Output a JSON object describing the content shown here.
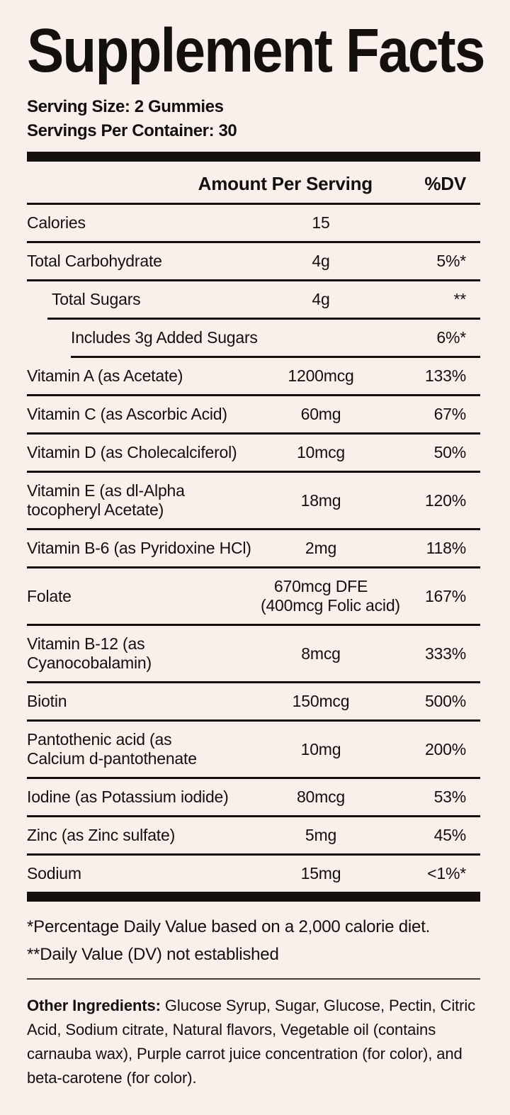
{
  "label": {
    "title": "Supplement Facts",
    "serving_size": "Serving Size: 2 Gummies",
    "servings_per_container": "Servings Per Container: 30",
    "header": {
      "amount": "Amount Per Serving",
      "dv": "%DV"
    },
    "rows": [
      {
        "name": "Calories",
        "amount": "15",
        "dv": "",
        "indent": 0
      },
      {
        "name": "Total Carbohydrate",
        "amount": "4g",
        "dv": "5%*",
        "indent": 0
      },
      {
        "name": "Total Sugars",
        "amount": "4g",
        "dv": "**",
        "indent": 1
      },
      {
        "name": "Includes 3g Added Sugars",
        "amount": "",
        "dv": "6%*",
        "indent": 2
      },
      {
        "name": "Vitamin A (as Acetate)",
        "amount": "1200mcg",
        "dv": "133%",
        "indent": 0
      },
      {
        "name": "Vitamin C (as Ascorbic Acid)",
        "amount": "60mg",
        "dv": "67%",
        "indent": 0
      },
      {
        "name": "Vitamin D (as Cholecalciferol)",
        "amount": "10mcg",
        "dv": "50%",
        "indent": 0
      },
      {
        "name": "Vitamin E (as dl-Alpha\ntocopheryl Acetate)",
        "amount": "18mg",
        "dv": "120%",
        "indent": 0
      },
      {
        "name": "Vitamin B-6 (as Pyridoxine HCl)",
        "amount": "2mg",
        "dv": "118%",
        "indent": 0
      },
      {
        "name": "Folate",
        "amount": "670mcg DFE\n(400mcg Folic acid)",
        "dv": "167%",
        "indent": 0
      },
      {
        "name": "Vitamin B-12 (as\nCyanocobalamin)",
        "amount": "8mcg",
        "dv": "333%",
        "indent": 0
      },
      {
        "name": "Biotin",
        "amount": "150mcg",
        "dv": "500%",
        "indent": 0
      },
      {
        "name": "Pantothenic acid (as\nCalcium d-pantothenate",
        "amount": "10mg",
        "dv": "200%",
        "indent": 0
      },
      {
        "name": "Iodine (as Potassium iodide)",
        "amount": "80mcg",
        "dv": "53%",
        "indent": 0
      },
      {
        "name": "Zinc (as Zinc sulfate)",
        "amount": "5mg",
        "dv": "45%",
        "indent": 0
      },
      {
        "name": "Sodium",
        "amount": "15mg",
        "dv": "<1%*",
        "indent": 0
      }
    ],
    "footnotes": [
      "*Percentage Daily Value based on a 2,000 calorie diet.",
      "**Daily Value (DV) not established"
    ],
    "other_ingredients_label": "Other Ingredients:",
    "other_ingredients_text": " Glucose Syrup, Sugar, Glucose, Pectin, Citric Acid, Sodium citrate, Natural flavors, Vegetable oil (contains carnauba wax), Purple carrot juice concentration (for color), and beta-carotene (for color)."
  },
  "colors": {
    "background": "#faf0eb",
    "text": "#14100d",
    "rule": "#14100d"
  }
}
